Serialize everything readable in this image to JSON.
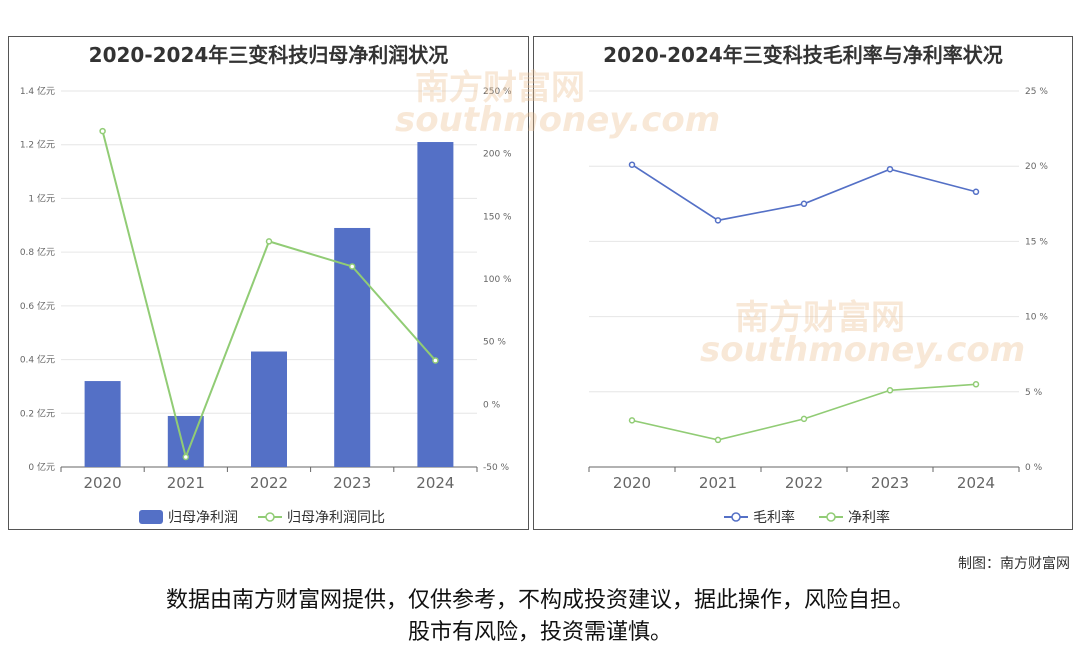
{
  "watermark": {
    "brand": "南方财富网",
    "site": "southmoney.com"
  },
  "credit": "制图：南方财富网",
  "disclaimer": {
    "line1": "数据由南方财富网提供，仅供参考，不构成投资建议，据此操作，风险自担。",
    "line2": "股市有风险，投资需谨慎。"
  },
  "colors": {
    "bar": "#5470c6",
    "green": "#91cc75",
    "blue": "#5470c6",
    "grid": "#e6e6e6",
    "axis": "#666666"
  },
  "chart_data": [
    {
      "type": "bar",
      "title": "2020-2024年三变科技归母净利润状况",
      "categories": [
        "2020",
        "2021",
        "2022",
        "2023",
        "2024"
      ],
      "series": [
        {
          "name": "归母净利润",
          "type": "bar",
          "axis": "left",
          "values": [
            0.32,
            0.19,
            0.43,
            0.89,
            1.21
          ]
        },
        {
          "name": "归母净利润同比",
          "type": "line",
          "axis": "right",
          "values": [
            218,
            -42,
            130,
            110,
            35
          ]
        }
      ],
      "y_left": {
        "min": 0,
        "max": 1.4,
        "ticks": [
          "0 亿元",
          "0.2 亿元",
          "0.4 亿元",
          "0.6 亿元",
          "0.8 亿元",
          "1 亿元",
          "1.2 亿元",
          "1.4 亿元"
        ]
      },
      "y_right": {
        "min": -50,
        "max": 250,
        "ticks": [
          "-50 %",
          "0 %",
          "50 %",
          "100 %",
          "150 %",
          "200 %",
          "250 %"
        ]
      },
      "legend": "bottom-center",
      "grid": true
    },
    {
      "type": "line",
      "title": "2020-2024年三变科技毛利率与净利率状况",
      "categories": [
        "2020",
        "2021",
        "2022",
        "2023",
        "2024"
      ],
      "series": [
        {
          "name": "毛利率",
          "values": [
            20.1,
            16.4,
            17.5,
            19.8,
            18.3
          ]
        },
        {
          "name": "净利率",
          "values": [
            3.1,
            1.8,
            3.2,
            5.1,
            5.5
          ]
        }
      ],
      "y_right": {
        "min": 0,
        "max": 25,
        "ticks": [
          "0 %",
          "5 %",
          "10 %",
          "15 %",
          "20 %",
          "25 %"
        ]
      },
      "legend": "bottom-center",
      "grid": true
    }
  ]
}
